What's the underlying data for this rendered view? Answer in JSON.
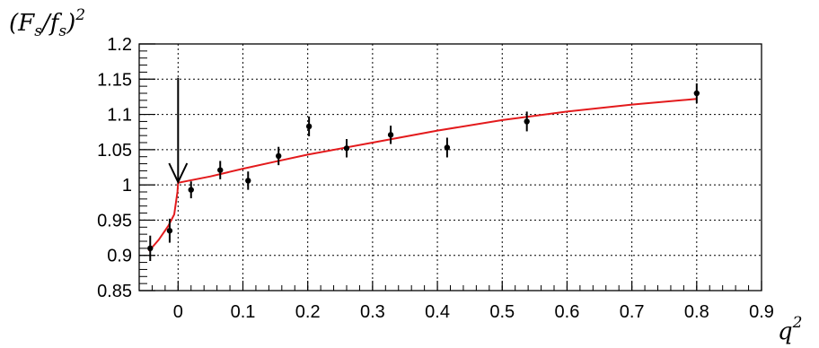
{
  "chart_data": {
    "type": "scatter",
    "title": "",
    "ylabel": "(F_s/f_s)^2",
    "ylabel_parts": {
      "open": "(",
      "F": "F",
      "F_sub": "s",
      "slash": "/",
      "f": "f",
      "f_sub": "s",
      "close": ")",
      "power": "2"
    },
    "xlabel_parts": {
      "q": "q",
      "power": "2"
    },
    "xlim": [
      -0.06,
      0.9
    ],
    "ylim": [
      0.85,
      1.2
    ],
    "grid": true,
    "x_ticks": [
      0,
      0.1,
      0.2,
      0.3,
      0.4,
      0.5,
      0.6,
      0.7,
      0.8,
      0.9
    ],
    "x_tick_labels": [
      "0",
      "0.1",
      "0.2",
      "0.3",
      "0.4",
      "0.5",
      "0.6",
      "0.7",
      "0.8",
      "0.9"
    ],
    "y_ticks": [
      0.85,
      0.9,
      0.95,
      1.0,
      1.05,
      1.1,
      1.15,
      1.2
    ],
    "y_tick_labels": [
      "0.85",
      "0.9",
      "0.95",
      "1",
      "1.05",
      "1.1",
      "1.15",
      "1.2"
    ],
    "series": [
      {
        "kind": "points_with_errors",
        "color": "#000000",
        "points": [
          {
            "x": -0.043,
            "y": 0.91,
            "err": 0.018
          },
          {
            "x": -0.013,
            "y": 0.935,
            "err": 0.017
          },
          {
            "x": 0.02,
            "y": 0.993,
            "err": 0.012
          },
          {
            "x": 0.065,
            "y": 1.021,
            "err": 0.013
          },
          {
            "x": 0.108,
            "y": 1.006,
            "err": 0.013
          },
          {
            "x": 0.155,
            "y": 1.041,
            "err": 0.013
          },
          {
            "x": 0.202,
            "y": 1.083,
            "err": 0.014
          },
          {
            "x": 0.26,
            "y": 1.052,
            "err": 0.013
          },
          {
            "x": 0.328,
            "y": 1.071,
            "err": 0.013
          },
          {
            "x": 0.415,
            "y": 1.053,
            "err": 0.014
          },
          {
            "x": 0.538,
            "y": 1.09,
            "err": 0.014
          },
          {
            "x": 0.8,
            "y": 1.13,
            "err": 0.014
          }
        ]
      },
      {
        "kind": "fit_line",
        "color": "#e31a1c",
        "x": [
          -0.045,
          -0.03,
          -0.015,
          -0.006,
          -0.001,
          0.0,
          0.05,
          0.1,
          0.15,
          0.2,
          0.3,
          0.4,
          0.5,
          0.6,
          0.7,
          0.8
        ],
        "y": [
          0.906,
          0.922,
          0.942,
          0.958,
          0.99,
          1.003,
          1.012,
          1.023,
          1.033,
          1.043,
          1.06,
          1.077,
          1.092,
          1.104,
          1.114,
          1.122
        ]
      }
    ],
    "annotations": [
      {
        "type": "arrow",
        "x": 0.0,
        "y_from": 1.152,
        "y_to": 1.004,
        "color": "#000000"
      }
    ]
  }
}
